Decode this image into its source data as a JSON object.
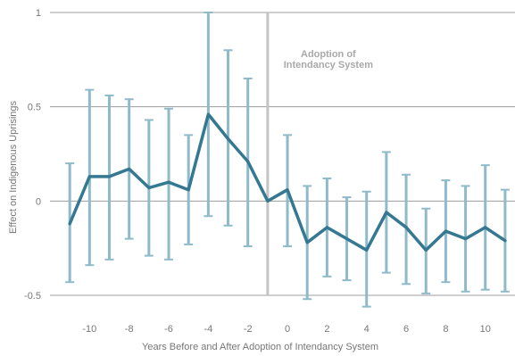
{
  "chart_data": {
    "type": "line",
    "xlabel": "Years Before and After Adoption of Intendancy System",
    "ylabel": "Effect on Indigenous Uprisings",
    "xlim": [
      -12,
      11.5
    ],
    "ylim": [
      -0.5,
      1
    ],
    "y_ticks": [
      -0.5,
      0,
      0.5,
      1
    ],
    "y_tick_labels": [
      "-0.5",
      "0",
      "0.5",
      "1"
    ],
    "x_ticks": [
      -10,
      -8,
      -6,
      -4,
      -2,
      0,
      2,
      4,
      6,
      8,
      10
    ],
    "x_tick_labels": [
      "-10",
      "-8",
      "-6",
      "-4",
      "-2",
      "0",
      "2",
      "4",
      "6",
      "8",
      "10"
    ],
    "grid": "horizontal",
    "reference_line": {
      "x": -1,
      "label_line1": "Adoption of",
      "label_line2": "Intendancy System"
    },
    "series": [
      {
        "x": [
          -11,
          -10,
          -9,
          -8,
          -7,
          -6,
          -5,
          -4,
          -3,
          -2,
          -1,
          0,
          1,
          2,
          3,
          4,
          5,
          6,
          7,
          8,
          9,
          10,
          11
        ],
        "values": [
          -0.12,
          0.13,
          0.13,
          0.17,
          0.07,
          0.1,
          0.06,
          0.46,
          0.33,
          0.21,
          0.0,
          0.06,
          -0.22,
          -0.14,
          -0.2,
          -0.26,
          -0.06,
          -0.14,
          -0.26,
          -0.16,
          -0.2,
          -0.14,
          -0.21
        ],
        "ci_low": [
          -0.43,
          -0.34,
          -0.31,
          -0.2,
          -0.29,
          -0.31,
          -0.23,
          -0.08,
          -0.13,
          -0.24,
          0.0,
          -0.24,
          -0.52,
          -0.4,
          -0.42,
          -0.56,
          -0.38,
          -0.44,
          -0.49,
          -0.43,
          -0.48,
          -0.47,
          -0.48
        ],
        "ci_high": [
          0.2,
          0.59,
          0.56,
          0.54,
          0.43,
          0.49,
          0.35,
          1.0,
          0.8,
          0.65,
          0.0,
          0.35,
          0.08,
          0.12,
          0.02,
          0.05,
          0.26,
          0.14,
          -0.04,
          0.11,
          0.08,
          0.19,
          0.06
        ]
      }
    ]
  },
  "colors": {
    "line": "#347891",
    "error_bar": "#8fbac9",
    "reference_line": "#c4c4c4",
    "grid": "#9c9c9c",
    "text": "#777777"
  }
}
